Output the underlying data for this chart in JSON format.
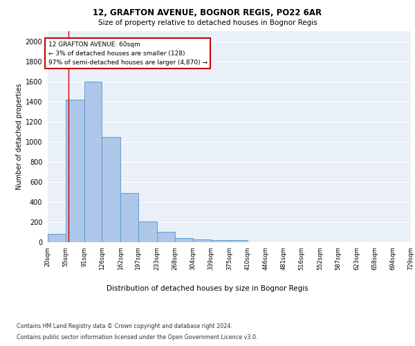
{
  "title1": "12, GRAFTON AVENUE, BOGNOR REGIS, PO22 6AR",
  "title2": "Size of property relative to detached houses in Bognor Regis",
  "xlabel": "Distribution of detached houses by size in Bognor Regis",
  "ylabel": "Number of detached properties",
  "footnote1": "Contains HM Land Registry data © Crown copyright and database right 2024.",
  "footnote2": "Contains public sector information licensed under the Open Government Licence v3.0.",
  "annotation_line1": "12 GRAFTON AVENUE: 60sqm",
  "annotation_line2": "← 3% of detached houses are smaller (128)",
  "annotation_line3": "97% of semi-detached houses are larger (4,870) →",
  "property_size": 60,
  "bin_edges": [
    20,
    55,
    91,
    126,
    162,
    197,
    233,
    268,
    304,
    339,
    375,
    410,
    446,
    481,
    516,
    552,
    587,
    623,
    658,
    694,
    729
  ],
  "bin_counts": [
    80,
    1420,
    1600,
    1050,
    490,
    205,
    100,
    42,
    28,
    22,
    20,
    0,
    0,
    0,
    0,
    0,
    0,
    0,
    0,
    0
  ],
  "bar_color": "#aec6e8",
  "bar_edge_color": "#5a9fd4",
  "marker_color": "#cc0000",
  "plot_bg": "#eaf0f8",
  "ylim": [
    0,
    2100
  ],
  "yticks": [
    0,
    200,
    400,
    600,
    800,
    1000,
    1200,
    1400,
    1600,
    1800,
    2000
  ],
  "grid_color": "#ffffff"
}
